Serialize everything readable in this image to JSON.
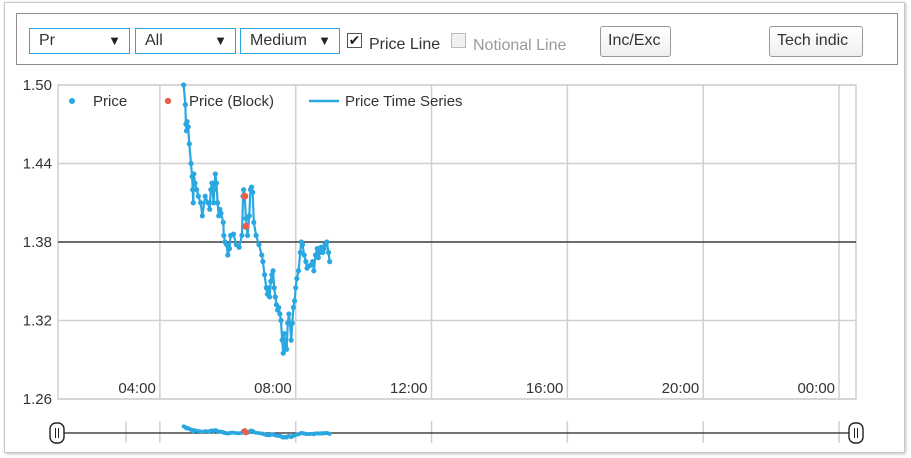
{
  "toolbar": {
    "select_1": "Pr",
    "select_2": "All",
    "select_3": "Medium",
    "price_line_label": "Price Line",
    "price_line_checked": true,
    "notional_line_label": "Notional Line",
    "notional_line_checked": false,
    "inc_exc_label": "Inc/Exc",
    "tech_indic_label": "Tech indic"
  },
  "chart_data": {
    "type": "scatter",
    "title": "",
    "xlabel": "",
    "ylabel": "",
    "ylim": [
      1.26,
      1.5
    ],
    "xlim_hours": [
      1.0,
      24.5
    ],
    "y_ticks": [
      "1.50",
      "1.44",
      "1.38",
      "1.32",
      "1.26"
    ],
    "x_ticks": [
      "04:00",
      "08:00",
      "12:00",
      "16:00",
      "20:00",
      "00:00"
    ],
    "grid": true,
    "legend_position": "top-left",
    "legend": [
      "Price",
      "Price (Block)",
      "Price Time Series"
    ],
    "reference_line": 1.38,
    "colors": {
      "price": "#2aa7e0",
      "block": "#e8604c",
      "ref_line": "#222222",
      "grid": "#d0d0d0"
    },
    "series": [
      {
        "name": "Price",
        "points": [
          [
            "04:42",
            1.5
          ],
          [
            "04:45",
            1.485
          ],
          [
            "04:46",
            1.47
          ],
          [
            "04:47",
            1.465
          ],
          [
            "04:48",
            1.472
          ],
          [
            "04:50",
            1.468
          ],
          [
            "04:52",
            1.455
          ],
          [
            "04:55",
            1.44
          ],
          [
            "04:57",
            1.43
          ],
          [
            "04:58",
            1.42
          ],
          [
            "04:59",
            1.41
          ],
          [
            "05:00",
            1.432
          ],
          [
            "05:02",
            1.425
          ],
          [
            "05:05",
            1.42
          ],
          [
            "05:08",
            1.415
          ],
          [
            "05:12",
            1.41
          ],
          [
            "05:15",
            1.4
          ],
          [
            "05:20",
            1.415
          ],
          [
            "05:25",
            1.41
          ],
          [
            "05:28",
            1.405
          ],
          [
            "05:30",
            1.42
          ],
          [
            "05:32",
            1.425
          ],
          [
            "05:35",
            1.41
          ],
          [
            "05:36",
            1.42
          ],
          [
            "05:38",
            1.432
          ],
          [
            "05:40",
            1.425
          ],
          [
            "05:42",
            1.41
          ],
          [
            "05:44",
            1.4
          ],
          [
            "05:46",
            1.405
          ],
          [
            "05:48",
            1.402
          ],
          [
            "05:52",
            1.395
          ],
          [
            "05:53",
            1.385
          ],
          [
            "05:55",
            1.38
          ],
          [
            "05:58",
            1.378
          ],
          [
            "06:00",
            1.37
          ],
          [
            "06:03",
            1.375
          ],
          [
            "06:05",
            1.385
          ],
          [
            "06:10",
            1.386
          ],
          [
            "06:15",
            1.378
          ],
          [
            "06:20",
            1.376
          ],
          [
            "06:25",
            1.385
          ],
          [
            "06:27",
            1.415
          ],
          [
            "06:28",
            1.42
          ],
          [
            "06:30",
            1.415
          ],
          [
            "06:32",
            1.398
          ],
          [
            "06:35",
            1.385
          ],
          [
            "06:38",
            1.4
          ],
          [
            "06:40",
            1.42
          ],
          [
            "06:42",
            1.422
          ],
          [
            "06:44",
            1.418
          ],
          [
            "06:46",
            1.395
          ],
          [
            "06:50",
            1.385
          ],
          [
            "06:55",
            1.378
          ],
          [
            "07:00",
            1.37
          ],
          [
            "07:02",
            1.365
          ],
          [
            "07:05",
            1.355
          ],
          [
            "07:08",
            1.345
          ],
          [
            "07:10",
            1.34
          ],
          [
            "07:12",
            1.345
          ],
          [
            "07:14",
            1.338
          ],
          [
            "07:16",
            1.35
          ],
          [
            "07:18",
            1.355
          ],
          [
            "07:20",
            1.358
          ],
          [
            "07:22",
            1.345
          ],
          [
            "07:24",
            1.338
          ],
          [
            "07:26",
            1.332
          ],
          [
            "07:28",
            1.328
          ],
          [
            "07:30",
            1.33
          ],
          [
            "07:32",
            1.325
          ],
          [
            "07:34",
            1.32
          ],
          [
            "07:36",
            1.305
          ],
          [
            "07:38",
            1.295
          ],
          [
            "07:40",
            1.31
          ],
          [
            "07:42",
            1.3
          ],
          [
            "07:44",
            1.298
          ],
          [
            "07:46",
            1.318
          ],
          [
            "07:48",
            1.325
          ],
          [
            "07:50",
            1.318
          ],
          [
            "07:52",
            1.305
          ],
          [
            "07:54",
            1.318
          ],
          [
            "07:56",
            1.33
          ],
          [
            "07:58",
            1.335
          ],
          [
            "08:00",
            1.345
          ],
          [
            "08:02",
            1.352
          ],
          [
            "08:05",
            1.358
          ],
          [
            "08:08",
            1.372
          ],
          [
            "08:10",
            1.38
          ],
          [
            "08:12",
            1.378
          ],
          [
            "08:15",
            1.37
          ],
          [
            "08:18",
            1.365
          ],
          [
            "08:20",
            1.36
          ],
          [
            "08:25",
            1.362
          ],
          [
            "08:30",
            1.365
          ],
          [
            "08:32",
            1.358
          ],
          [
            "08:35",
            1.37
          ],
          [
            "08:38",
            1.375
          ],
          [
            "08:40",
            1.368
          ],
          [
            "08:43",
            1.372
          ],
          [
            "08:45",
            1.376
          ],
          [
            "08:48",
            1.372
          ],
          [
            "08:50",
            1.375
          ],
          [
            "08:52",
            1.378
          ],
          [
            "08:55",
            1.38
          ],
          [
            "08:58",
            1.372
          ],
          [
            "09:00",
            1.365
          ]
        ]
      },
      {
        "name": "Price (Block)",
        "points": [
          [
            "06:30",
            1.415
          ],
          [
            "06:32",
            1.392
          ]
        ]
      },
      {
        "name": "Price Time Series",
        "points_ref": "Price"
      }
    ]
  },
  "navigator": {
    "range_hours": [
      1.0,
      24.5
    ]
  }
}
